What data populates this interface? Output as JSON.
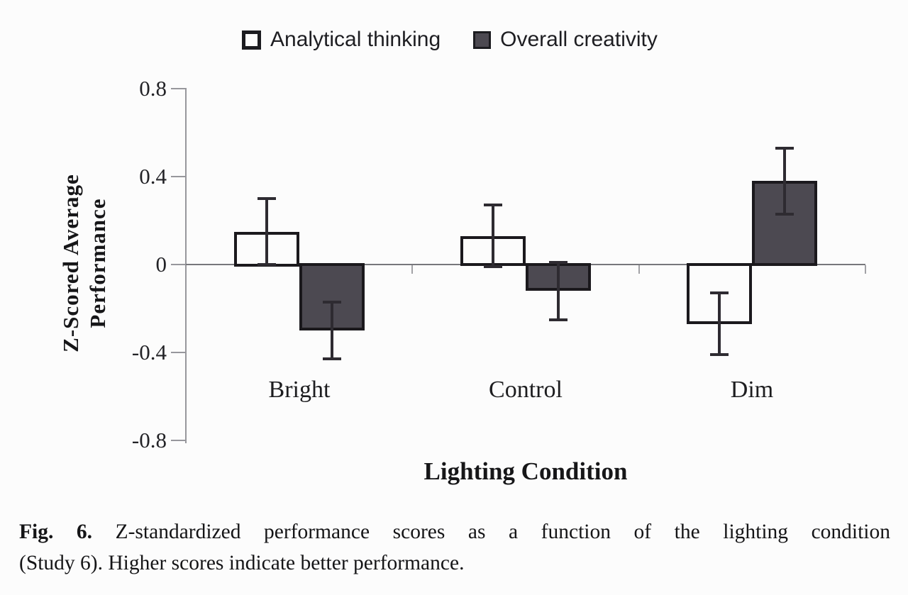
{
  "chart_data": {
    "type": "bar",
    "title": "",
    "xlabel": "Lighting Condition",
    "ylabel": "Z-Scored Average Performance",
    "ylabel_lines": [
      "Z-Scored Average",
      "Performance"
    ],
    "categories": [
      "Bright",
      "Control",
      "Dim"
    ],
    "series": [
      {
        "name": "Analytical thinking",
        "fill": "#fcfcfc",
        "swatch": "white",
        "values": [
          0.15,
          0.13,
          -0.27
        ],
        "errors": [
          0.15,
          0.14,
          0.14
        ]
      },
      {
        "name": "Overall creativity",
        "fill": "#4c4951",
        "swatch": "dark",
        "values": [
          -0.3,
          -0.12,
          0.38
        ],
        "errors": [
          0.13,
          0.13,
          0.15
        ]
      }
    ],
    "ylim": [
      -0.8,
      0.8
    ],
    "yticks": [
      0.8,
      0.4,
      0,
      -0.4,
      -0.8
    ],
    "ytick_labels": [
      "0.8",
      "0.4",
      "0",
      "-0.4",
      "-0.8"
    ],
    "grid": false,
    "legend_position": "top",
    "error_bars": true,
    "colors": {
      "bar_outline": "#1b191d",
      "dark_fill": "#4c4951",
      "white_fill": "#fcfcfc",
      "axis_line": "#97979c",
      "zero_line": "#77777c",
      "error_bar": "#2e2b31",
      "text": "#161618"
    }
  },
  "caption": {
    "fig_label": "Fig. 6.",
    "line1": "Z-standardized performance scores as a function of the lighting condition",
    "line2": "(Study 6). Higher scores indicate better performance.",
    "full_text": "Fig. 6. Z-standardized performance scores as a function of the lighting condition (Study 6). Higher scores indicate better performance."
  }
}
